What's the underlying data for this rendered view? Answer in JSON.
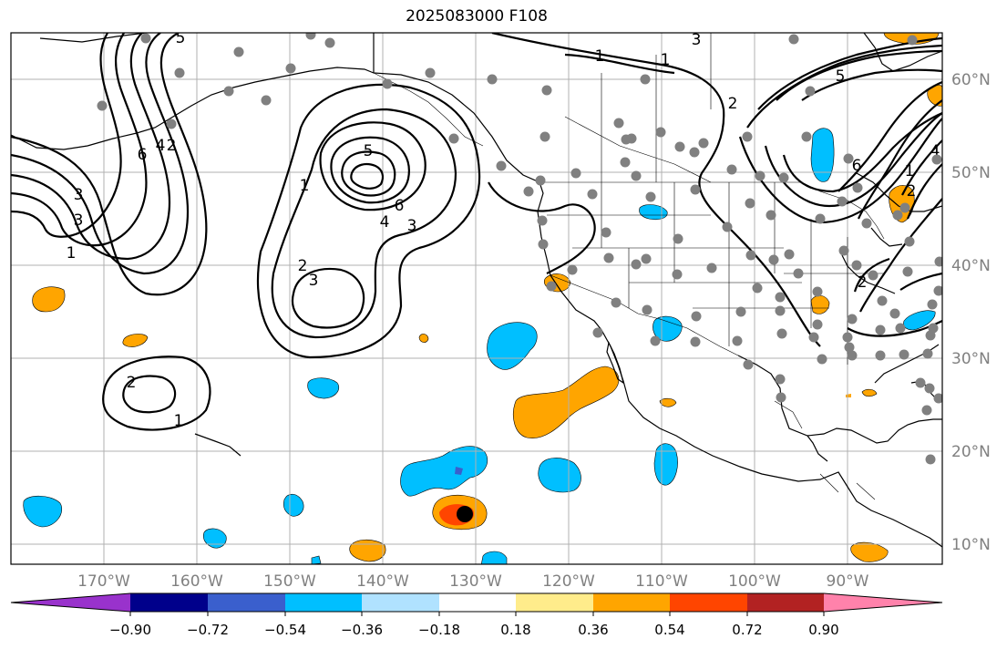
{
  "title": "2025083000 F108",
  "colors": {
    "background": "#ffffff",
    "grid": "#b0b0b0",
    "coast": "#000000",
    "axis_label": "#808080",
    "station_dot": "#808080",
    "marker": "#000000"
  },
  "lon_labels": [
    "170°W",
    "160°W",
    "150°W",
    "140°W",
    "130°W",
    "120°W",
    "110°W",
    "100°W",
    "90°W"
  ],
  "lat_labels": [
    "60°N",
    "50°N",
    "40°N",
    "30°N",
    "20°N",
    "10°N"
  ],
  "colorbar": {
    "colors": [
      "#9932cc",
      "#00008b",
      "#3a5fcd",
      "#00bfff",
      "#b0e2ff",
      "#ffffff",
      "#ffec8b",
      "#ffa500",
      "#ff4500",
      "#b22222",
      "#ff82ab"
    ],
    "tick_labels": [
      "−0.90",
      "−0.72",
      "−0.54",
      "−0.36",
      "−0.18",
      "0.18",
      "0.36",
      "0.54",
      "0.72",
      "0.90"
    ]
  },
  "contour_labels": [
    "1",
    "1",
    "1",
    "1",
    "1",
    "1",
    "2",
    "2",
    "2",
    "2",
    "2",
    "2",
    "3",
    "3",
    "3",
    "3",
    "3",
    "4",
    "4",
    "4",
    "5",
    "5",
    "5",
    "6",
    "6",
    "6"
  ]
}
